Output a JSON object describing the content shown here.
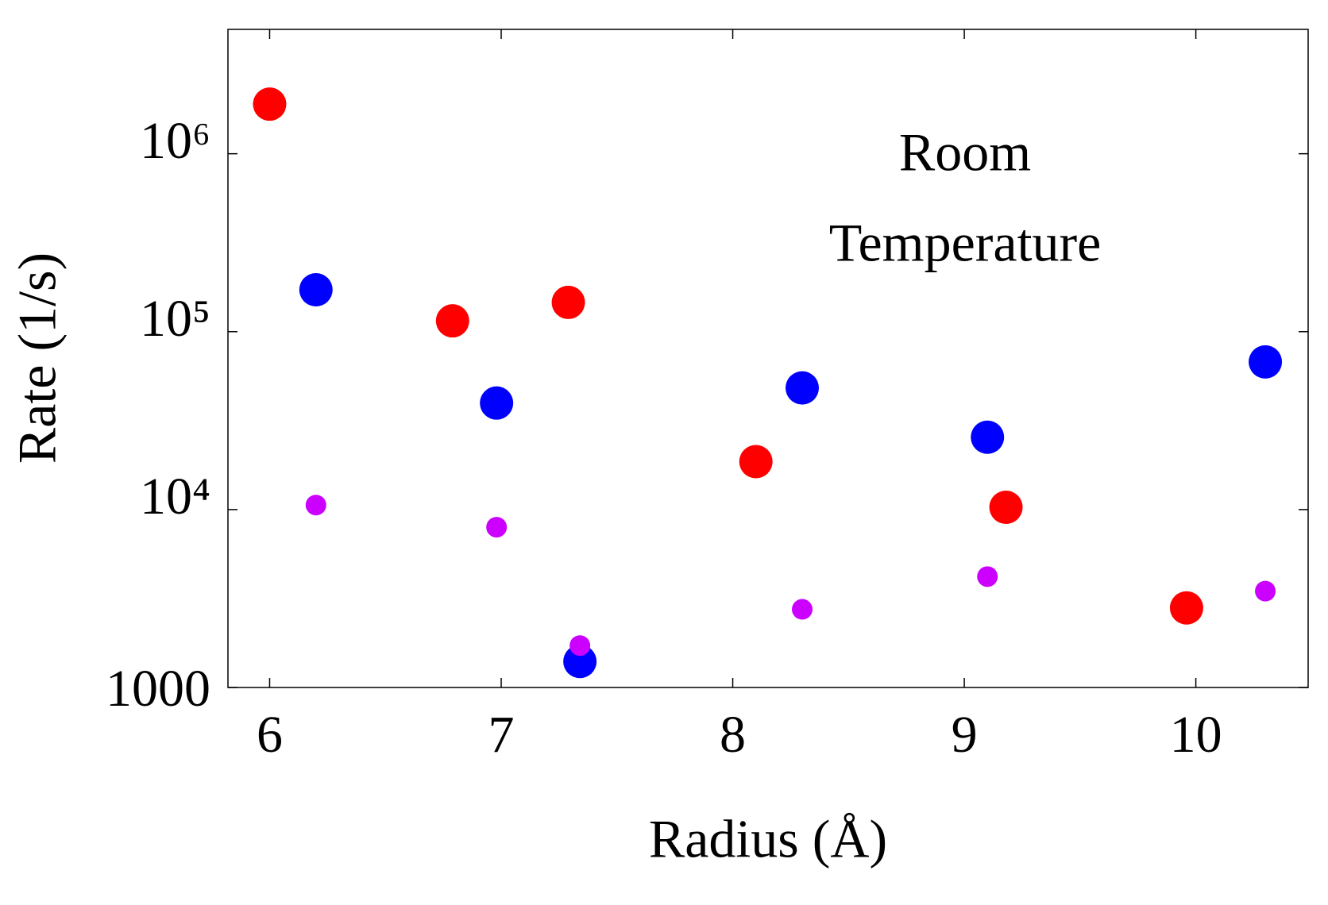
{
  "chart_data": {
    "type": "scatter",
    "xlabel": "Radius (Å)",
    "ylabel": "Rate (1/s)",
    "annotation": [
      "Room",
      "Temperature"
    ],
    "xlim": [
      5.82,
      10.485
    ],
    "xticks": [
      6,
      7,
      8,
      9,
      10
    ],
    "ylim": [
      1000,
      5000000
    ],
    "yscale": "log",
    "yticks": [
      1000,
      {
        "value": 10000,
        "label": "10⁴"
      },
      {
        "value": 100000,
        "label": "10⁵"
      },
      {
        "value": 1000000,
        "label": "10⁶"
      }
    ],
    "series": [
      {
        "color": "#ff0000",
        "x": [
          6.0,
          6.79,
          7.29,
          8.1,
          9.18,
          9.96
        ],
        "values": [
          1900000,
          115000,
          146000,
          18600,
          10300,
          2800
        ]
      },
      {
        "color": "#0000ff",
        "x": [
          6.2,
          6.98,
          7.34,
          8.3,
          9.1,
          10.3
        ],
        "values": [
          172000,
          39700,
          1400,
          48300,
          25500,
          67600
        ]
      },
      {
        "color": "#cc00ff",
        "x": [
          6.2,
          6.98,
          7.34,
          8.3,
          9.1,
          10.3
        ],
        "values": [
          10600,
          7960,
          1720,
          2750,
          4200,
          3480
        ]
      }
    ]
  }
}
